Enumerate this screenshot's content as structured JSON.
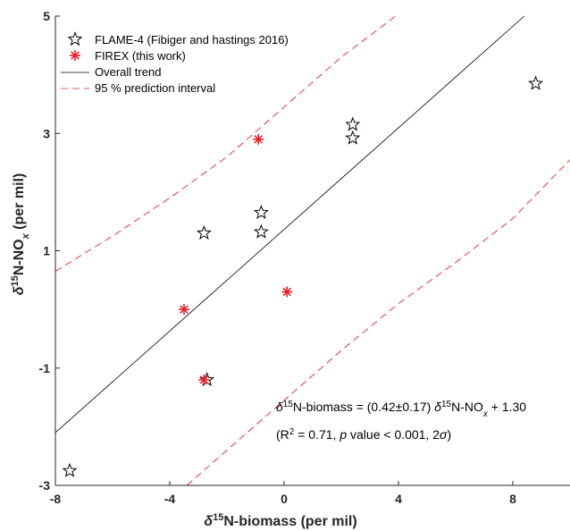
{
  "chart_data": {
    "type": "scatter",
    "title": "",
    "xlabel": {
      "delta": "δ",
      "sup": "15",
      "rest": "N-biomass (per mil)"
    },
    "ylabel": {
      "delta": "δ",
      "sup": "15",
      "rest": "N-NO",
      "sub": "x",
      "tail": " (per mil)"
    },
    "xlim": [
      -8,
      10
    ],
    "ylim": [
      -3,
      5
    ],
    "xticks": [
      "-8",
      "-4",
      "0",
      "4",
      "8"
    ],
    "yticks": [
      "-3",
      "-1",
      "1",
      "3",
      "5"
    ],
    "xtick_values": [
      -8,
      -4,
      0,
      4,
      8
    ],
    "ytick_values": [
      -3,
      -1,
      1,
      3,
      5
    ],
    "grid": false,
    "legend_position": "top-left",
    "series": [
      {
        "name": "FLAME-4 (Fibiger and hastings 2016)",
        "marker": "star",
        "color": "#000000",
        "x": [
          -7.5,
          -2.8,
          -2.7,
          -0.8,
          -0.8,
          2.4,
          2.4,
          8.8
        ],
        "y": [
          -2.75,
          1.3,
          -1.2,
          1.32,
          1.65,
          3.15,
          2.92,
          3.85
        ]
      },
      {
        "name": "FIREX (this work)",
        "marker": "asterisk",
        "color": "#e8202a",
        "x": [
          -0.9,
          0.1,
          -3.5,
          -2.8
        ],
        "y": [
          2.9,
          0.3,
          0.0,
          -1.2
        ]
      }
    ],
    "trend": {
      "name": "Overall trend",
      "color": "#000000",
      "x": [
        -8,
        8.4
      ],
      "y": [
        -2.1,
        5
      ]
    },
    "prediction_interval": {
      "name": "95 % prediction interval",
      "color": "#e8202a",
      "upper": {
        "x": [
          -8,
          -6,
          -4,
          -2,
          0,
          2,
          3.9
        ],
        "y": [
          0.65,
          1.25,
          1.9,
          2.6,
          3.45,
          4.3,
          5
        ]
      },
      "lower": {
        "x": [
          -3.4,
          -2,
          0,
          2,
          4,
          6,
          8,
          10
        ],
        "y": [
          -3,
          -2.4,
          -1.55,
          -0.7,
          0.1,
          0.8,
          1.55,
          2.55
        ]
      }
    },
    "annotations": {
      "line1": {
        "delta": "δ",
        "sup": "15",
        "a": "N-biomass = (0.42±0.17) ",
        "delta2": "δ",
        "sup2": "15",
        "b": "N-NO",
        "sub": "x",
        "c": " + 1.30"
      },
      "line2": {
        "a": "(R",
        "sup": "2",
        "b": " = 0.71, ",
        "p": "p",
        "c": " value < 0.001, 2",
        "sigma": "σ",
        "d": ")"
      }
    }
  }
}
